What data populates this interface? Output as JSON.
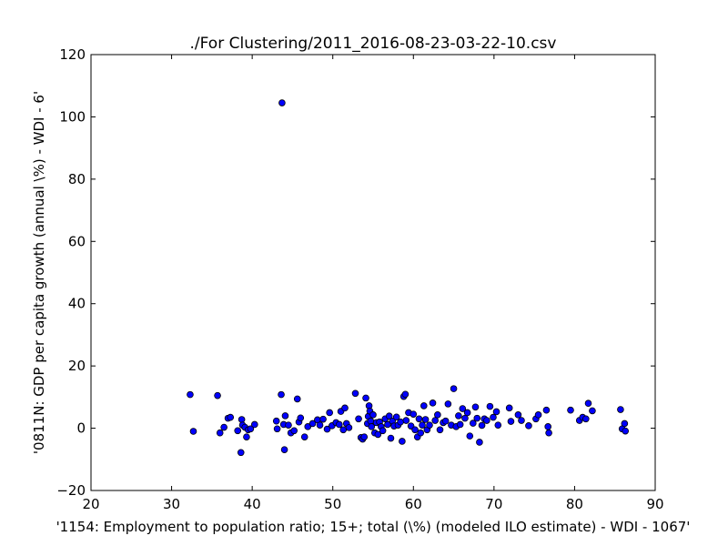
{
  "chart_data": {
    "type": "scatter",
    "title": "./For Clustering/2011_2016-08-23-03-22-10.csv",
    "xlabel": "'1154: Employment to population ratio; 15+; total (\\%)  (modeled ILO estimate) - WDI - 1067'",
    "ylabel": "'0811N: GDP per capita growth  (annual \\%) - WDI - 6'",
    "xlim": [
      20,
      90
    ],
    "ylim": [
      -20,
      120
    ],
    "xticks": [
      "20",
      "30",
      "40",
      "50",
      "60",
      "70",
      "80",
      "90"
    ],
    "yticks": [
      "−20",
      "0",
      "20",
      "40",
      "60",
      "80",
      "100",
      "120"
    ],
    "grid": false,
    "marker_color": "#0000ff",
    "marker_edge_color": "#000000",
    "x": [
      32.3,
      32.7,
      35.7,
      36.0,
      36.5,
      37.0,
      37.3,
      38.2,
      38.6,
      38.7,
      38.8,
      39.1,
      39.3,
      39.5,
      39.8,
      40.3,
      43.0,
      43.1,
      43.6,
      43.7,
      43.9,
      44.0,
      44.1,
      44.5,
      44.8,
      45.2,
      45.6,
      45.8,
      46.0,
      46.5,
      46.9,
      47.5,
      48.1,
      48.4,
      48.8,
      49.3,
      49.6,
      49.9,
      50.4,
      50.8,
      51.0,
      51.3,
      51.5,
      51.7,
      52.0,
      52.8,
      53.2,
      53.5,
      53.7,
      53.9,
      54.1,
      54.3,
      54.4,
      54.5,
      54.6,
      54.7,
      54.8,
      55.0,
      55.2,
      55.4,
      55.6,
      55.8,
      56.0,
      56.2,
      56.5,
      56.8,
      57.0,
      57.2,
      57.4,
      57.6,
      57.9,
      58.1,
      58.4,
      58.6,
      58.8,
      59.0,
      59.1,
      59.4,
      59.7,
      60.0,
      60.2,
      60.5,
      60.7,
      60.9,
      61.1,
      61.3,
      61.5,
      61.7,
      62.0,
      62.4,
      62.7,
      63.0,
      63.3,
      63.7,
      64.0,
      64.3,
      64.7,
      65.0,
      65.3,
      65.6,
      65.8,
      66.1,
      66.4,
      66.7,
      67.0,
      67.4,
      67.7,
      67.9,
      68.2,
      68.5,
      68.8,
      69.1,
      69.5,
      69.9,
      70.3,
      70.5,
      71.9,
      72.1,
      73.0,
      73.4,
      74.3,
      75.2,
      75.5,
      76.5,
      76.7,
      76.8,
      79.5,
      80.6,
      81.0,
      81.4,
      81.7,
      82.2,
      85.7,
      85.9,
      86.2,
      86.3
    ],
    "y": [
      10.8,
      -1.0,
      10.5,
      -1.5,
      0.3,
      3.2,
      3.5,
      -0.8,
      -7.8,
      2.8,
      1.0,
      0.3,
      -2.8,
      -0.5,
      -0.2,
      1.2,
      2.3,
      -0.2,
      10.8,
      104.5,
      1.2,
      -6.9,
      4.0,
      1.0,
      -1.5,
      -0.8,
      9.4,
      2.0,
      3.3,
      -2.8,
      0.5,
      1.5,
      2.7,
      1.0,
      2.9,
      -0.3,
      5.0,
      0.8,
      1.8,
      1.2,
      5.4,
      -0.5,
      6.5,
      1.5,
      0.2,
      11.2,
      3.0,
      -3.0,
      -3.5,
      -2.8,
      9.7,
      1.5,
      3.8,
      7.2,
      5.5,
      2.3,
      0.5,
      4.3,
      -1.5,
      1.8,
      -2.0,
      2.0,
      0.5,
      -0.8,
      3.0,
      1.2,
      3.9,
      -3.2,
      2.3,
      0.7,
      3.6,
      1.0,
      2.0,
      -4.2,
      10.2,
      10.9,
      2.5,
      5.0,
      0.7,
      4.5,
      -0.5,
      -2.8,
      3.0,
      -1.5,
      1.0,
      7.2,
      2.8,
      -0.5,
      1.0,
      8.1,
      2.5,
      4.3,
      -0.5,
      1.8,
      2.3,
      7.8,
      1.0,
      12.7,
      0.5,
      4.0,
      1.2,
      6.3,
      3.2,
      5.0,
      -2.5,
      1.6,
      6.8,
      3.2,
      -4.5,
      0.9,
      3.0,
      2.5,
      7.0,
      3.5,
      5.3,
      1.0,
      6.5,
      2.2,
      4.3,
      2.5,
      0.8,
      3.0,
      4.3,
      5.8,
      0.5,
      -1.5,
      5.8,
      2.5,
      3.5,
      3.0,
      8.0,
      5.6,
      6.0,
      -0.2,
      1.5,
      -0.9
    ]
  }
}
